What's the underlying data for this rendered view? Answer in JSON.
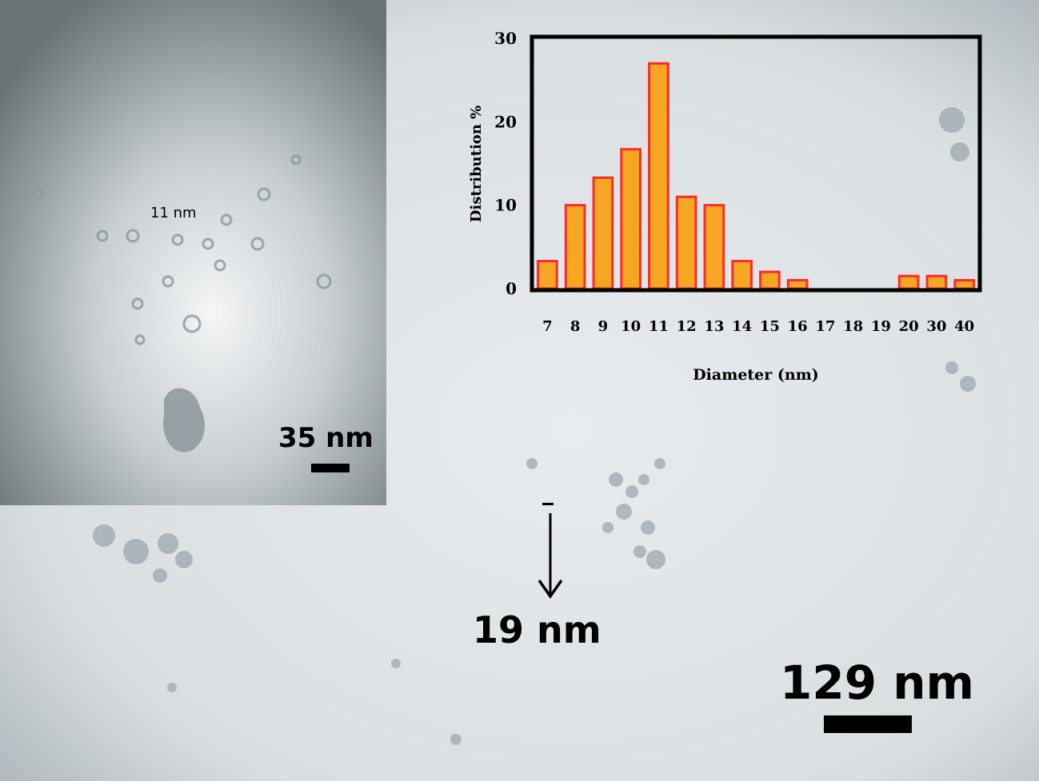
{
  "main_image": {
    "scale_bar_label": "129 nm",
    "particle_label": "19 nm"
  },
  "inset_image": {
    "scale_bar_label": "35 nm",
    "particle_label": "11 nm"
  },
  "chart_data": {
    "type": "bar",
    "title": "",
    "xlabel": "Diameter (nm)",
    "ylabel": "Distribution %",
    "categories": [
      "7",
      "8",
      "9",
      "10",
      "11",
      "12",
      "13",
      "14",
      "15",
      "16",
      "17",
      "18",
      "19",
      "20",
      "30",
      "40"
    ],
    "values": [
      3.3,
      10,
      13.3,
      16.7,
      27,
      11,
      10,
      3.3,
      2,
      1,
      0,
      0,
      0,
      1.5,
      1.5,
      1
    ],
    "ylim": [
      0,
      30
    ],
    "yticks": [
      0,
      10,
      20,
      30
    ],
    "grid": false,
    "colors": {
      "bar_fill": "#f5a623",
      "bar_edge": "#ff2a2a",
      "frame": "#000000"
    }
  }
}
